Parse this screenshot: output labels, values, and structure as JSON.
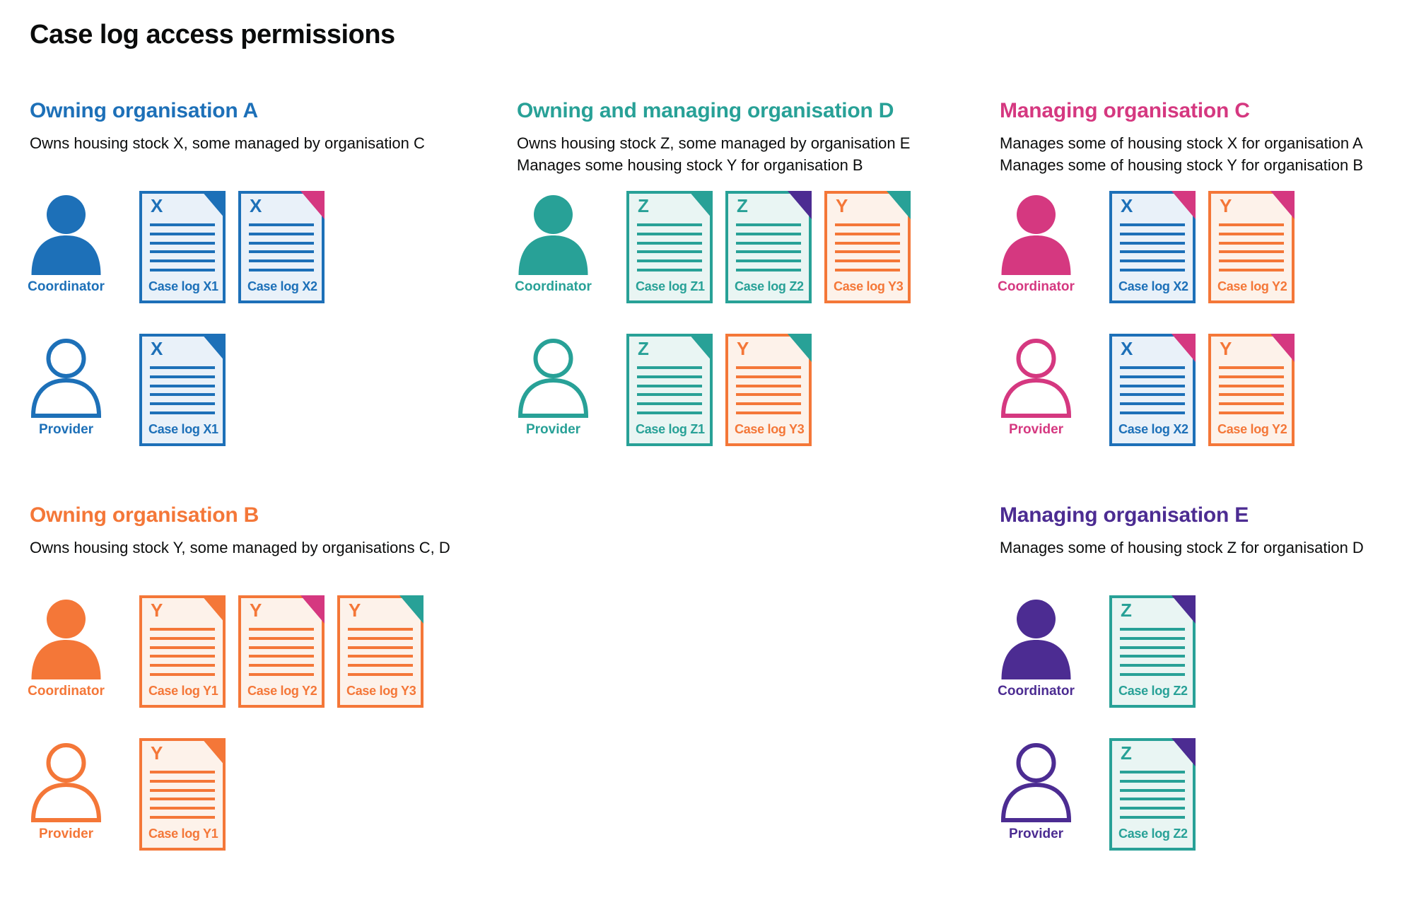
{
  "title": "Case log access permissions",
  "colors": {
    "blue": "#1d70b8",
    "teal": "#28a197",
    "pink": "#d53880",
    "orange": "#f47738",
    "purple": "#4c2c92",
    "ink": "#0b0c0c",
    "doc_bg": {
      "blue": "#e9f1f9",
      "teal": "#e9f5f3",
      "orange": "#fdf2ea"
    }
  },
  "roles": {
    "coordinator": "Coordinator",
    "provider": "Provider"
  },
  "sections": [
    {
      "id": "org-a",
      "theme": "blue",
      "heading": "Owning organisation A",
      "subtitle_lines": [
        "Owns housing stock X, some managed by organisation C"
      ],
      "rows": [
        {
          "role": "Coordinator",
          "docs": [
            {
              "letter": "X",
              "theme": "blue",
              "fold": "blue",
              "label": "Case log X1"
            },
            {
              "letter": "X",
              "theme": "blue",
              "fold": "pink",
              "label": "Case log X2"
            }
          ]
        },
        {
          "role": "Provider",
          "docs": [
            {
              "letter": "X",
              "theme": "blue",
              "fold": "blue",
              "label": "Case log X1"
            }
          ]
        }
      ]
    },
    {
      "id": "org-d",
      "theme": "teal",
      "heading": "Owning and managing organisation D",
      "subtitle_lines": [
        "Owns housing stock Z, some managed by organisation E",
        "Manages some housing stock Y for organisation B"
      ],
      "rows": [
        {
          "role": "Coordinator",
          "docs": [
            {
              "letter": "Z",
              "theme": "teal",
              "fold": "teal",
              "label": "Case log Z1"
            },
            {
              "letter": "Z",
              "theme": "teal",
              "fold": "purple",
              "label": "Case log Z2"
            },
            {
              "letter": "Y",
              "theme": "orange",
              "fold": "teal",
              "label": "Case log Y3"
            }
          ]
        },
        {
          "role": "Provider",
          "docs": [
            {
              "letter": "Z",
              "theme": "teal",
              "fold": "teal",
              "label": "Case log Z1"
            },
            {
              "letter": "Y",
              "theme": "orange",
              "fold": "teal",
              "label": "Case log Y3"
            }
          ]
        }
      ]
    },
    {
      "id": "org-c",
      "theme": "pink",
      "heading": "Managing organisation C",
      "subtitle_lines": [
        "Manages some of housing stock X for organisation A",
        "Manages some of housing stock Y for organisation B"
      ],
      "rows": [
        {
          "role": "Coordinator",
          "docs": [
            {
              "letter": "X",
              "theme": "blue",
              "fold": "pink",
              "label": "Case log X2"
            },
            {
              "letter": "Y",
              "theme": "orange",
              "fold": "pink",
              "label": "Case log Y2"
            }
          ]
        },
        {
          "role": "Provider",
          "docs": [
            {
              "letter": "X",
              "theme": "blue",
              "fold": "pink",
              "label": "Case log X2"
            },
            {
              "letter": "Y",
              "theme": "orange",
              "fold": "pink",
              "label": "Case log Y2"
            }
          ]
        }
      ]
    },
    {
      "id": "org-b",
      "theme": "orange",
      "heading": "Owning organisation B",
      "subtitle_lines": [
        "Owns housing stock Y, some managed by organisations C, D"
      ],
      "rows": [
        {
          "role": "Coordinator",
          "docs": [
            {
              "letter": "Y",
              "theme": "orange",
              "fold": "orange",
              "label": "Case log Y1"
            },
            {
              "letter": "Y",
              "theme": "orange",
              "fold": "pink",
              "label": "Case log Y2"
            },
            {
              "letter": "Y",
              "theme": "orange",
              "fold": "teal",
              "label": "Case log Y3"
            }
          ]
        },
        {
          "role": "Provider",
          "docs": [
            {
              "letter": "Y",
              "theme": "orange",
              "fold": "orange",
              "label": "Case log Y1"
            }
          ]
        }
      ]
    },
    {
      "id": "org-e",
      "theme": "purple",
      "heading": "Managing organisation E",
      "subtitle_lines": [
        "Manages some of housing stock Z for organisation D"
      ],
      "rows": [
        {
          "role": "Coordinator",
          "docs": [
            {
              "letter": "Z",
              "theme": "teal",
              "fold": "purple",
              "label": "Case log Z2"
            }
          ]
        },
        {
          "role": "Provider",
          "docs": [
            {
              "letter": "Z",
              "theme": "teal",
              "fold": "purple",
              "label": "Case log Z2"
            }
          ]
        }
      ]
    }
  ]
}
